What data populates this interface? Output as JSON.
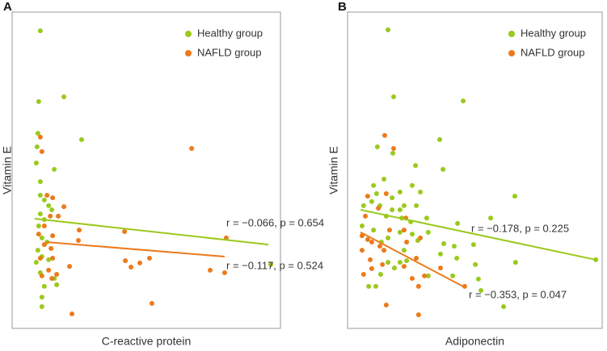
{
  "chart_data": [
    {
      "type": "scatter",
      "panel_label": "A",
      "xlabel": "C-reactive protein",
      "ylabel": "Vitamin E",
      "xlim": [
        0,
        100
      ],
      "ylim": [
        0,
        100
      ],
      "legend": "top-right",
      "series": [
        {
          "name": "Healthy group",
          "color": "#9bc91d",
          "x": [
            10.5,
            9.9,
            19.3,
            25.9,
            9.6,
            9.3,
            9.0,
            15.7,
            10.5,
            10.5,
            12.0,
            13.6,
            14.8,
            10.5,
            12.0,
            9.9,
            11.1,
            13.0,
            9.6,
            11.1,
            13.6,
            9.0,
            10.5,
            15.7,
            12.0,
            16.6,
            11.1,
            11.1,
            96.4
          ],
          "y": [
            94.1,
            71.7,
            73.2,
            59.7,
            61.7,
            57.4,
            52.3,
            50.3,
            46.4,
            42.1,
            40.6,
            38.8,
            37.5,
            36.2,
            34.4,
            32.4,
            28.6,
            27.3,
            24.7,
            22.7,
            21.7,
            20.9,
            17.6,
            15.8,
            13.3,
            13.8,
            9.9,
            6.9,
            20.2
          ]
        },
        {
          "name": "NAFLD group",
          "color": "#ec7a1c",
          "x": [
            10.5,
            66.9,
            11.1,
            13.0,
            15.1,
            19.3,
            14.2,
            17.2,
            12.0,
            25.0,
            15.1,
            9.9,
            24.7,
            12.0,
            14.5,
            41.9,
            79.8,
            10.5,
            15.1,
            21.4,
            42.2,
            44.3,
            47.6,
            51.2,
            13.6,
            11.1,
            16.6,
            14.8,
            73.8,
            79.2,
            52.1,
            22.3
          ],
          "y": [
            60.5,
            56.9,
            55.9,
            42.1,
            41.3,
            38.5,
            35.5,
            35.5,
            32.4,
            31.1,
            29.3,
            29.8,
            27.8,
            26.5,
            25.3,
            30.6,
            28.6,
            22.2,
            22.2,
            19.6,
            21.4,
            19.4,
            20.7,
            22.2,
            18.4,
            16.6,
            17.1,
            15.8,
            18.4,
            17.6,
            7.9,
            4.6
          ]
        }
      ],
      "fit_lines": [
        {
          "color": "#9bc91d",
          "x": [
            8.4,
            95.5
          ],
          "y": [
            34.7,
            26.5
          ],
          "annotation": "r = −0.066, p = 0.654"
        },
        {
          "color": "#ec7a1c",
          "x": [
            12.7,
            79.2
          ],
          "y": [
            27.3,
            22.7
          ],
          "annotation": "r = −0.117, p = 0.524"
        }
      ]
    },
    {
      "type": "scatter",
      "panel_label": "B",
      "xlabel": "Adiponectin",
      "ylabel": "Vitamin E",
      "xlim": [
        0,
        100
      ],
      "ylim": [
        0,
        100
      ],
      "legend": "top-right",
      "series": [
        {
          "name": "Healthy group",
          "color": "#9bc91d",
          "x": [
            15.9,
            45.4,
            18.1,
            36.2,
            11.7,
            17.8,
            37.5,
            26.7,
            10.2,
            14.3,
            25.4,
            11.4,
            17.5,
            20.6,
            28.6,
            9.5,
            12.7,
            6.3,
            17.5,
            22.2,
            27.0,
            15.2,
            5.7,
            20.6,
            21.3,
            24.8,
            31.1,
            43.2,
            56.2,
            65.7,
            10.2,
            20.6,
            25.4,
            15.9,
            31.7,
            13.3,
            27.6,
            37.8,
            41.9,
            49.5,
            20.6,
            23.2,
            15.9,
            22.2,
            36.5,
            42.9,
            50.2,
            66.0,
            97.5,
            13.0,
            18.4,
            8.3,
            11.1,
            31.7,
            41.3,
            51.4,
            61.3,
            52.4
          ],
          "y": [
            94.4,
            71.9,
            73.2,
            59.7,
            57.4,
            55.4,
            50.3,
            51.5,
            45.2,
            47.2,
            45.2,
            42.6,
            41.3,
            43.1,
            43.1,
            40.1,
            38.8,
            38.8,
            37.5,
            38.8,
            38.8,
            35.5,
            32.4,
            37.5,
            34.9,
            33.7,
            34.9,
            33.2,
            34.9,
            41.8,
            31.1,
            30.4,
            29.8,
            28.6,
            30.4,
            27.3,
            27.8,
            26.8,
            26.0,
            26.5,
            20.9,
            21.4,
            20.9,
            24.7,
            23.5,
            22.2,
            20.2,
            20.9,
            21.7,
            17.1,
            19.1,
            13.3,
            13.3,
            16.6,
            16.6,
            15.6,
            6.9,
            12.0
          ]
        },
        {
          "name": "NAFLD group",
          "color": "#ec7a1c",
          "x": [
            14.6,
            18.1,
            7.9,
            15.2,
            12.1,
            7.0,
            22.9,
            5.7,
            7.9,
            9.5,
            12.7,
            16.5,
            22.2,
            28.6,
            27.0,
            14.3,
            8.9,
            9.5,
            13.7,
            6.3,
            22.2,
            25.4,
            30.2,
            36.5,
            27.9,
            5.7,
            15.2,
            27.9,
            46.0,
            23.2
          ],
          "y": [
            61.0,
            56.9,
            41.8,
            42.6,
            38.0,
            35.5,
            34.9,
            29.3,
            28.1,
            27.3,
            26.0,
            31.1,
            31.1,
            28.6,
            22.2,
            24.7,
            21.7,
            18.9,
            20.2,
            17.1,
            19.6,
            15.8,
            16.6,
            19.1,
            13.3,
            24.7,
            7.4,
            4.3,
            13.3,
            27.3
          ]
        }
      ],
      "fit_lines": [
        {
          "color": "#9bc91d",
          "x": [
            5.1,
            97.5
          ],
          "y": [
            37.5,
            21.7
          ],
          "annotation": "r = −0.178, p = 0.225"
        },
        {
          "color": "#ec7a1c",
          "x": [
            5.1,
            46.0
          ],
          "y": [
            30.4,
            13.0
          ],
          "annotation": "r = −0.353, p = 0.047"
        }
      ]
    }
  ]
}
